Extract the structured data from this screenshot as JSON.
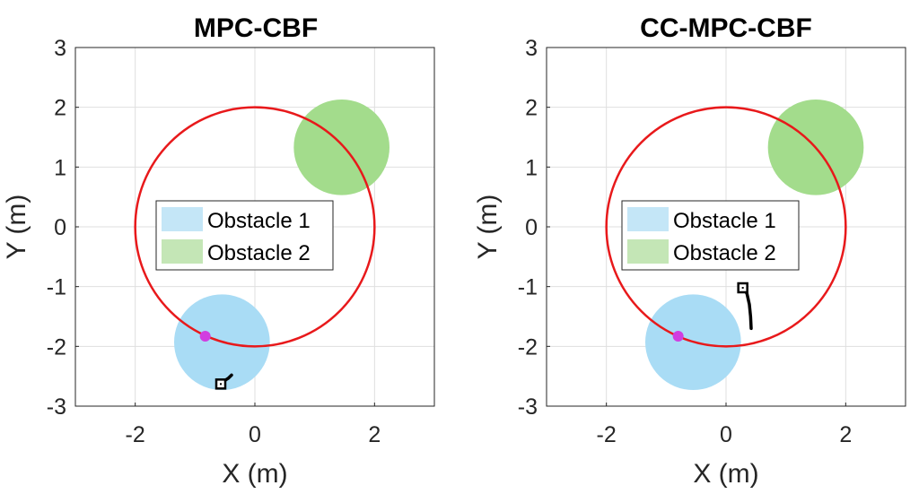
{
  "chart_data": [
    {
      "type": "scatter",
      "title": "MPC-CBF",
      "xlabel": "X (m)",
      "ylabel": "Y (m)",
      "xlim": [
        -3,
        3
      ],
      "ylim": [
        -3,
        3
      ],
      "xticks": [
        -2,
        0,
        2
      ],
      "yticks": [
        -3,
        -2,
        -1,
        0,
        1,
        2,
        3
      ],
      "grid": true,
      "legend": {
        "entries": [
          "Obstacle 1",
          "Obstacle 2"
        ],
        "placement": "center"
      },
      "obstacles": [
        {
          "name": "Obstacle 1",
          "cx": -0.55,
          "cy": -1.93,
          "r": 0.8,
          "color": "#a9dcf5"
        },
        {
          "name": "Obstacle 2",
          "cx": 1.45,
          "cy": 1.33,
          "r": 0.8,
          "color": "#a3dc8c"
        }
      ],
      "reference_circle": {
        "cx": 0,
        "cy": 0,
        "r": 2,
        "color": "#e8191b"
      },
      "marker": {
        "x": -0.83,
        "y": -1.83,
        "color": "#d13ee0"
      },
      "trajectory": {
        "points": [
          [
            -0.57,
            -2.62
          ],
          [
            -0.5,
            -2.57
          ],
          [
            -0.44,
            -2.53
          ],
          [
            -0.39,
            -2.48
          ]
        ],
        "color": "#000000"
      },
      "robot": {
        "x": -0.57,
        "y": -2.63
      }
    },
    {
      "type": "scatter",
      "title": "CC-MPC-CBF",
      "xlabel": "X (m)",
      "ylabel": "Y (m)",
      "xlim": [
        -3,
        3
      ],
      "ylim": [
        -3,
        3
      ],
      "xticks": [
        -2,
        0,
        2
      ],
      "yticks": [
        -3,
        -2,
        -1,
        0,
        1,
        2,
        3
      ],
      "grid": true,
      "legend": {
        "entries": [
          "Obstacle 1",
          "Obstacle 2"
        ],
        "placement": "center"
      },
      "obstacles": [
        {
          "name": "Obstacle 1",
          "cx": -0.55,
          "cy": -1.93,
          "r": 0.8,
          "color": "#a9dcf5"
        },
        {
          "name": "Obstacle 2",
          "cx": 1.5,
          "cy": 1.33,
          "r": 0.8,
          "color": "#a3dc8c"
        }
      ],
      "reference_circle": {
        "cx": 0,
        "cy": 0,
        "r": 2,
        "color": "#e8191b"
      },
      "marker": {
        "x": -0.8,
        "y": -1.83,
        "color": "#d13ee0"
      },
      "trajectory": {
        "points": [
          [
            0.3,
            -1.02
          ],
          [
            0.35,
            -1.12
          ],
          [
            0.39,
            -1.3
          ],
          [
            0.41,
            -1.5
          ],
          [
            0.42,
            -1.7
          ]
        ],
        "color": "#000000"
      },
      "robot": {
        "x": 0.28,
        "y": -1.02
      }
    }
  ]
}
